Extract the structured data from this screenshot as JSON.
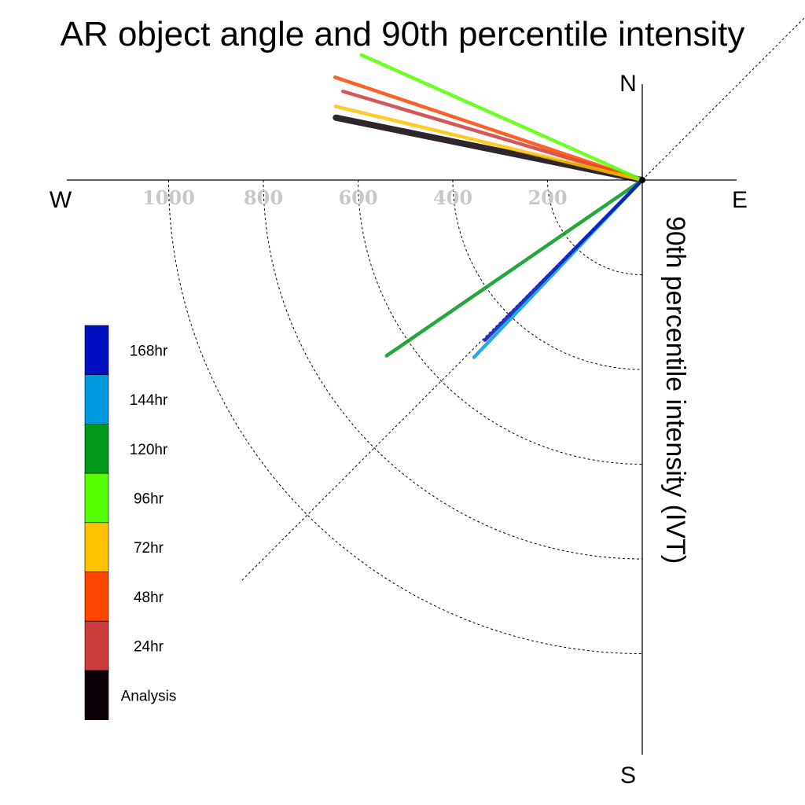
{
  "chart_data": {
    "type": "polar-vector",
    "title": "AR object angle and 90th percentile intensity",
    "radial_label": "90th percentile intensity (IVT)",
    "compass": {
      "north": "N",
      "south": "S",
      "east": "E",
      "west": "W"
    },
    "radial_ticks": [
      200,
      400,
      600,
      800,
      1000
    ],
    "rmax": 1200,
    "series": [
      {
        "name": "Analysis",
        "color": "#0b0008",
        "angle_deg": 168.5,
        "magnitude": 660
      },
      {
        "name": "24hr",
        "color": "#cc3c3c",
        "angle_deg": 163.5,
        "magnitude": 659
      },
      {
        "name": "48hr",
        "color": "#ff4500",
        "angle_deg": 161.5,
        "magnitude": 684
      },
      {
        "name": "72hr",
        "color": "#ffc200",
        "angle_deg": 166.5,
        "magnitude": 666
      },
      {
        "name": "96hr",
        "color": "#55ff00",
        "angle_deg": 156.0,
        "magnitude": 649
      },
      {
        "name": "120hr",
        "color": "#00991a",
        "angle_deg": 214.5,
        "magnitude": 655
      },
      {
        "name": "144hr",
        "color": "#0099e0",
        "angle_deg": 226.5,
        "magnitude": 516
      },
      {
        "name": "168hr",
        "color": "#0010c0",
        "angle_deg": 225.5,
        "magnitude": 474
      }
    ],
    "legend": [
      "168hr",
      "144hr",
      "120hr",
      "96hr",
      "72hr",
      "48hr",
      "24hr",
      "Analysis"
    ],
    "legend_colors": [
      "#0010c0",
      "#0099e0",
      "#00991a",
      "#55ff00",
      "#ffc200",
      "#ff4500",
      "#cc3c3c",
      "#0b0008"
    ]
  }
}
